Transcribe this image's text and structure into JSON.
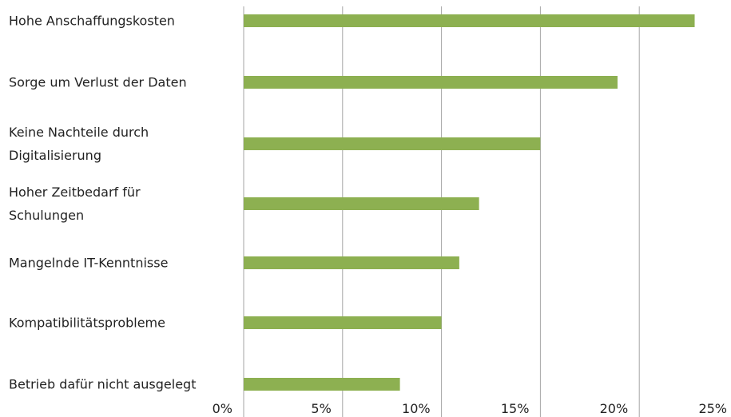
{
  "chart_data": {
    "type": "bar",
    "orientation": "horizontal",
    "categories": [
      "Hohe Anschaffungskosten",
      "Sorge um Verlust der Daten",
      "Keine Nachteile durch Digitalisierung",
      "Hoher Zeitbedarf für Schulungen",
      "Mangelnde IT-Kenntnisse",
      "Kompatibilitätsprobleme",
      "Betrieb dafür nicht ausgelegt"
    ],
    "values": [
      22.8,
      18.9,
      15.0,
      11.9,
      10.9,
      10.0,
      7.9
    ],
    "color": "#8db051",
    "xlim": [
      0,
      25
    ],
    "xticks": [
      {
        "value": 0,
        "label": "0%"
      },
      {
        "value": 5,
        "label": "5%"
      },
      {
        "value": 10,
        "label": "10%"
      },
      {
        "value": 15,
        "label": "15%"
      },
      {
        "value": 20,
        "label": "20%"
      },
      {
        "value": 25,
        "label": "25%"
      }
    ],
    "grid": true
  }
}
